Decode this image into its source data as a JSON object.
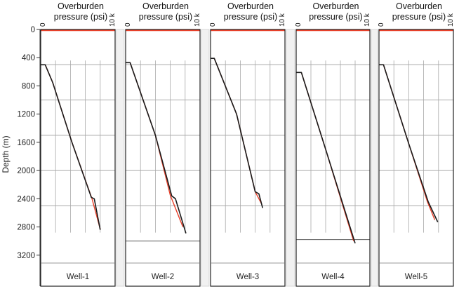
{
  "chart_data": {
    "type": "line",
    "ylabel": "Depth (m)",
    "yticks": [
      0,
      400,
      800,
      1200,
      1600,
      2000,
      2400,
      2800,
      3200
    ],
    "ylim": [
      0,
      3300
    ],
    "y_inverted": true,
    "xlim": [
      0,
      10
    ],
    "panel_header_line1": "Overburden",
    "panel_header_line2": "pressure (psi)",
    "x_tick_left": "0",
    "x_tick_right": "10 k",
    "grid": true,
    "colors": {
      "measured": "#1a1a1a",
      "model": "#e8402a",
      "grid": "#a8a8a8",
      "frame": "#222222"
    },
    "panels": [
      {
        "name": "Well-1",
        "hgrid": [
          500,
          1000,
          1500,
          2000,
          2500
        ],
        "baseline": null,
        "series": [
          {
            "color": "model",
            "points": [
              [
                0.0,
                500
              ],
              [
                0.6,
                500
              ],
              [
                1.6,
                750
              ],
              [
                4.2,
                1600
              ],
              [
                6.9,
                2400
              ],
              [
                8.0,
                2830
              ]
            ]
          },
          {
            "color": "measured",
            "points": [
              [
                0.0,
                500
              ],
              [
                0.6,
                500
              ],
              [
                1.6,
                750
              ],
              [
                4.2,
                1600
              ],
              [
                6.8,
                2380
              ],
              [
                7.2,
                2400
              ],
              [
                8.0,
                2840
              ]
            ]
          }
        ]
      },
      {
        "name": "Well-2",
        "hgrid": [
          500,
          1000,
          1500,
          2000,
          2500
        ],
        "baseline": 3000,
        "series": [
          {
            "color": "model",
            "points": [
              [
                0.0,
                470
              ],
              [
                0.6,
                470
              ],
              [
                4.0,
                1500
              ],
              [
                6.0,
                2350
              ],
              [
                7.7,
                2800
              ]
            ]
          },
          {
            "color": "measured",
            "points": [
              [
                0.0,
                470
              ],
              [
                0.6,
                470
              ],
              [
                4.0,
                1500
              ],
              [
                6.2,
                2360
              ],
              [
                6.7,
                2400
              ],
              [
                8.1,
                2890
              ]
            ]
          }
        ]
      },
      {
        "name": "Well-3",
        "hgrid": [
          500,
          1000,
          1500,
          2000,
          2500
        ],
        "baseline": null,
        "series": [
          {
            "color": "model",
            "points": [
              [
                0.0,
                410
              ],
              [
                0.5,
                410
              ],
              [
                3.5,
                1200
              ],
              [
                6.0,
                2300
              ],
              [
                6.9,
                2480
              ]
            ]
          },
          {
            "color": "measured",
            "points": [
              [
                0.0,
                410
              ],
              [
                0.5,
                410
              ],
              [
                3.5,
                1200
              ],
              [
                6.0,
                2300
              ],
              [
                6.5,
                2330
              ],
              [
                7.0,
                2530
              ]
            ]
          }
        ]
      },
      {
        "name": "Well-4",
        "hgrid": [
          500,
          1000,
          1500,
          2000,
          2500
        ],
        "baseline": 2980,
        "series": [
          {
            "color": "model",
            "points": [
              [
                0.0,
                610
              ],
              [
                0.7,
                610
              ],
              [
                4.0,
                1700
              ],
              [
                7.8,
                3000
              ]
            ]
          },
          {
            "color": "measured",
            "points": [
              [
                0.0,
                610
              ],
              [
                0.7,
                610
              ],
              [
                4.0,
                1700
              ],
              [
                8.0,
                3030
              ]
            ]
          }
        ]
      },
      {
        "name": "Well-5",
        "hgrid": [
          500,
          1000,
          1500,
          2000,
          2500
        ],
        "baseline": null,
        "series": [
          {
            "color": "model",
            "points": [
              [
                0.0,
                500
              ],
              [
                0.6,
                500
              ],
              [
                4.0,
                1620
              ],
              [
                6.5,
                2440
              ],
              [
                7.5,
                2700
              ]
            ]
          },
          {
            "color": "measured",
            "points": [
              [
                0.0,
                500
              ],
              [
                0.6,
                500
              ],
              [
                4.0,
                1620
              ],
              [
                6.6,
                2440
              ],
              [
                7.9,
                2730
              ]
            ]
          }
        ]
      }
    ]
  }
}
